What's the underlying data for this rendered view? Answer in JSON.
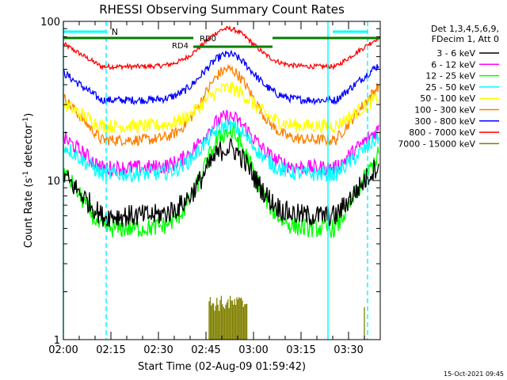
{
  "chart_data": {
    "type": "line",
    "title": "RHESSI Observing Summary Count Rates",
    "xlabel": "Start Time (02-Aug-09 01:59:42)",
    "ylabel_main": "Count Rate (s",
    "ylabel_sup1": "-1",
    "ylabel_mid": " detector",
    "ylabel_sup2": "-1",
    "ylabel_end": ")",
    "y_scale": "log",
    "ylim": [
      1,
      100
    ],
    "x_range_minutes": [
      0,
      100
    ],
    "x_ticks": [
      {
        "t": 0,
        "label": "02:00"
      },
      {
        "t": 15,
        "label": "02:15"
      },
      {
        "t": 30,
        "label": "02:30"
      },
      {
        "t": 45,
        "label": "02:45"
      },
      {
        "t": 60,
        "label": "03:00"
      },
      {
        "t": 75,
        "label": "03:15"
      },
      {
        "t": 90,
        "label": "03:30"
      }
    ],
    "y_ticks": [
      {
        "v": 1,
        "label": "1"
      },
      {
        "v": 10,
        "label": "10"
      },
      {
        "v": 100,
        "label": "100"
      }
    ],
    "legend_header": [
      "Det 1,3,4,5,6,9,",
      "FDecim 1, Att 0"
    ],
    "legend_position": "right",
    "series": [
      {
        "name": "3 - 6 keV",
        "color": "#000000",
        "base": 6,
        "peak": 16
      },
      {
        "name": "6 - 12 keV",
        "color": "#ff00ff",
        "base": 12,
        "peak": 25
      },
      {
        "name": "12 - 25 keV",
        "color": "#00ff00",
        "base": 5,
        "peak": 20
      },
      {
        "name": "25 - 50 keV",
        "color": "#00ffff",
        "base": 11,
        "peak": 22
      },
      {
        "name": "50 - 100 keV",
        "color": "#ffff00",
        "base": 22,
        "peak": 38
      },
      {
        "name": "100 - 300 keV",
        "color": "#ff8000",
        "base": 18,
        "peak": 50
      },
      {
        "name": "300 - 800 keV",
        "color": "#0000ff",
        "base": 32,
        "peak": 62
      },
      {
        "name": "800 - 7000 keV",
        "color": "#ff0000",
        "base": 52,
        "peak": 90
      },
      {
        "name": "7000 - 15000 keV",
        "color": "#808000",
        "base": 1.5,
        "peak": 1.9
      }
    ],
    "annotations": {
      "saa_label": "N",
      "rd4_label": "RD4",
      "rd0_label": "RD0",
      "saa_color": "#00ffff",
      "attenuator_color": "#008000"
    },
    "footer_date": "15-Oct-2021 09:45"
  }
}
